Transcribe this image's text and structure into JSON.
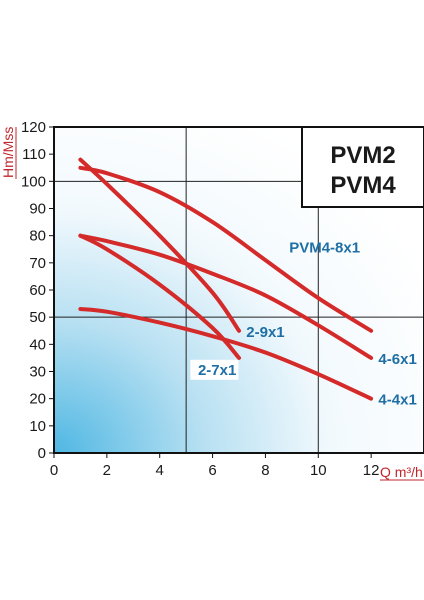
{
  "chart_data": {
    "type": "line",
    "title_lines": [
      "PVM2",
      "PVM4"
    ],
    "xlabel": "Q m³/h",
    "ylabel": "Hm/Mss",
    "xlim": [
      0,
      14
    ],
    "ylim": [
      0,
      120
    ],
    "x_ticks": [
      0,
      2,
      4,
      6,
      8,
      10,
      12
    ],
    "y_ticks": [
      0,
      10,
      20,
      30,
      40,
      50,
      60,
      70,
      80,
      90,
      100,
      110,
      120
    ],
    "grid": "major lines at x=5, x=10 and y=50, y=100",
    "background": "light blue gradient from bottom-left",
    "series": [
      {
        "name": "PVM4-8x1",
        "x": [
          1,
          2,
          4,
          6,
          8,
          10,
          12
        ],
        "y": [
          105,
          103,
          96,
          85,
          71,
          57,
          45
        ]
      },
      {
        "name": "2-9x1",
        "x": [
          1,
          2,
          4,
          6,
          7
        ],
        "y": [
          108,
          99,
          80,
          59,
          45
        ]
      },
      {
        "name": "4-6x1",
        "x": [
          1,
          2,
          4,
          6,
          8,
          10,
          12
        ],
        "y": [
          80,
          78,
          73,
          66,
          58,
          47,
          35
        ]
      },
      {
        "name": "2-7x1",
        "x": [
          1,
          2,
          4,
          6,
          7
        ],
        "y": [
          80,
          75,
          62,
          46,
          35
        ]
      },
      {
        "name": "4-4x1",
        "x": [
          1,
          2,
          4,
          6,
          8,
          10,
          12
        ],
        "y": [
          53,
          52,
          48,
          43,
          37,
          29,
          20
        ]
      }
    ],
    "line_color": "#d42a2a",
    "label_color": "#1f6fa5",
    "axis_label_color": "#c0272d"
  }
}
